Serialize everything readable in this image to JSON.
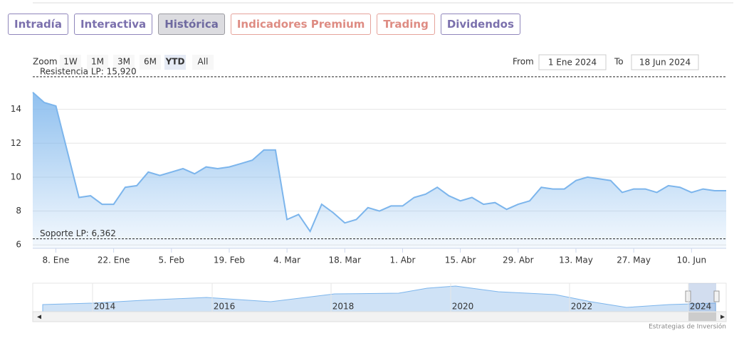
{
  "tabs": [
    "Intradía",
    "Interactiva",
    "Histórica",
    "Indicadores Premium",
    "Trading",
    "Dividendos"
  ],
  "active_tab": "Histórica",
  "zoom": {
    "label": "Zoom",
    "buttons": [
      "1W",
      "1M",
      "3M",
      "6M",
      "YTD",
      "All"
    ],
    "active": "YTD"
  },
  "range": {
    "from_label": "From",
    "from": "1 Ene 2024",
    "to_label": "To",
    "to": "18 Jun 2024"
  },
  "chart_data": {
    "type": "area",
    "categories": [
      null,
      null,
      "8. Ene",
      null,
      null,
      null,
      null,
      "22. Ene",
      null,
      null,
      null,
      null,
      "5. Feb",
      null,
      null,
      null,
      null,
      "19. Feb",
      null,
      null,
      null,
      null,
      "4. Mar",
      null,
      null,
      null,
      null,
      "18. Mar",
      null,
      null,
      null,
      null,
      "1. Abr",
      null,
      null,
      null,
      null,
      "15. Abr",
      null,
      null,
      null,
      null,
      "29. Abr",
      null,
      null,
      null,
      null,
      "13. May",
      null,
      null,
      null,
      null,
      "27. May",
      null,
      null,
      null,
      null,
      "10. Jun",
      null,
      null,
      null
    ],
    "values": [
      15.0,
      14.4,
      14.2,
      11.5,
      8.8,
      8.9,
      8.4,
      8.4,
      9.4,
      9.5,
      10.3,
      10.1,
      10.3,
      10.5,
      10.2,
      10.6,
      10.5,
      10.6,
      10.8,
      11.0,
      11.6,
      11.6,
      7.5,
      7.8,
      6.8,
      8.4,
      7.9,
      7.3,
      7.5,
      8.2,
      8.0,
      8.3,
      8.3,
      8.8,
      9.0,
      9.4,
      8.9,
      8.6,
      8.8,
      8.4,
      8.5,
      8.1,
      8.4,
      8.6,
      9.4,
      9.3,
      9.3,
      9.8,
      10.0,
      9.9,
      9.8,
      9.1,
      9.3,
      9.3,
      9.1,
      9.5,
      9.4,
      9.1,
      9.3,
      9.2,
      9.2
    ],
    "color": "#7cb5ec",
    "ylim": [
      5.8,
      16
    ],
    "yticks": [
      6,
      8,
      10,
      12,
      14
    ],
    "grid": true,
    "lines": [
      {
        "label": "Resistencia LP: 15,920",
        "value": 15.92
      },
      {
        "label": "Soporte LP: 6,362",
        "value": 6.362
      }
    ]
  },
  "navigator": {
    "years": [
      "2014",
      "2016",
      "2018",
      "2020",
      "2022",
      "2024"
    ]
  },
  "credit": "Estrategias de Inversión"
}
